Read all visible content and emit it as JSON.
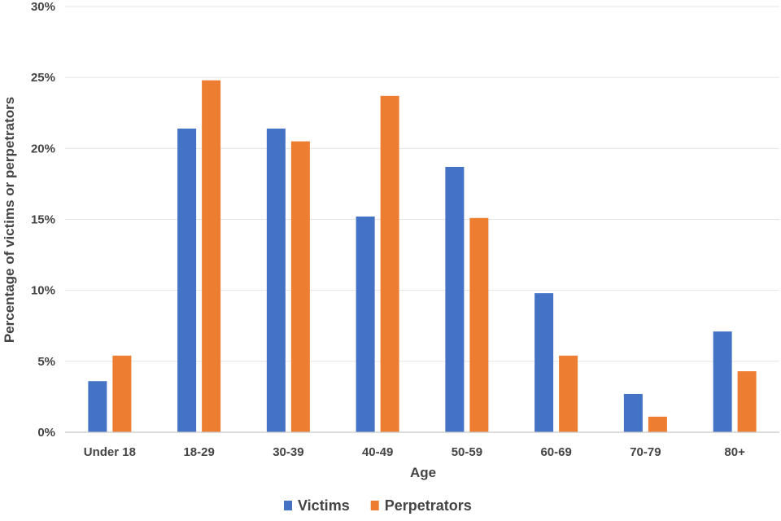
{
  "chart_data": {
    "type": "bar",
    "title": "",
    "xlabel": "Age",
    "ylabel": "Percentage of victims or perpetrators",
    "ylim": [
      0,
      30
    ],
    "yticks": [
      "0%",
      "5%",
      "10%",
      "15%",
      "20%",
      "25%",
      "30%"
    ],
    "categories": [
      "Under 18",
      "18-29",
      "30-39",
      "40-49",
      "50-59",
      "60-69",
      "70-79",
      "80+"
    ],
    "series": [
      {
        "name": "Victims",
        "color": "#4472C4",
        "values": [
          3.6,
          21.4,
          21.4,
          15.2,
          18.7,
          9.8,
          2.7,
          7.1
        ]
      },
      {
        "name": "Perpetrators",
        "color": "#ED7D31",
        "values": [
          5.4,
          24.8,
          20.5,
          23.7,
          15.1,
          5.4,
          1.1,
          4.3
        ]
      }
    ],
    "legend_position": "bottom",
    "grid": true
  }
}
